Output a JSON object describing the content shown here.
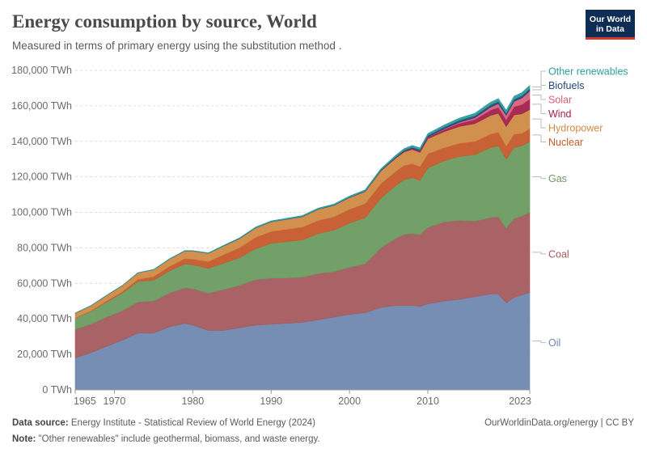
{
  "header": {
    "title": "Energy consumption by source, World",
    "subtitle": "Measured in terms of primary energy using the substitution method .",
    "logo_line1": "Our World",
    "logo_line2": "in Data"
  },
  "footer": {
    "source_label": "Data source:",
    "source_text": "Energy Institute - Statistical Review of World Energy (2024)",
    "note_label": "Note:",
    "note_text": "\"Other renewables\" include geothermal, biomass, and waste energy.",
    "right_text": "OurWorldinData.org/energy | CC BY"
  },
  "chart_data": {
    "type": "area",
    "stacked": true,
    "unit": "TWh",
    "y_tick_format": "{v} TWh",
    "ylim": [
      0,
      180000
    ],
    "y_ticks": [
      0,
      20000,
      40000,
      60000,
      80000,
      100000,
      120000,
      140000,
      160000,
      180000
    ],
    "x_ticks": [
      1965,
      1970,
      1980,
      1990,
      2000,
      2010,
      2023
    ],
    "x": [
      1965,
      1967,
      1969,
      1971,
      1973,
      1975,
      1977,
      1979,
      1980,
      1982,
      1984,
      1986,
      1988,
      1990,
      1992,
      1994,
      1996,
      1998,
      2000,
      2002,
      2004,
      2006,
      2007,
      2008,
      2009,
      2010,
      2012,
      2014,
      2016,
      2018,
      2019,
      2020,
      2021,
      2022,
      2023
    ],
    "series": [
      {
        "name": "Oil",
        "color": "#6f87b0",
        "values": [
          18000,
          21000,
          24500,
          28000,
          32000,
          32000,
          35500,
          37500,
          36500,
          33500,
          33500,
          35000,
          36500,
          37000,
          37500,
          38000,
          39500,
          41000,
          42500,
          43500,
          46500,
          47500,
          47500,
          47500,
          47000,
          48500,
          50000,
          51000,
          52500,
          54000,
          54000,
          49000,
          52000,
          53500,
          55000
        ]
      },
      {
        "name": "Coal",
        "color": "#a45a5e",
        "values": [
          16000,
          16000,
          16500,
          16500,
          17500,
          18000,
          19000,
          20000,
          20500,
          21000,
          23000,
          24000,
          25500,
          26000,
          25500,
          25500,
          26000,
          25500,
          26500,
          27500,
          33500,
          38000,
          40000,
          40500,
          40500,
          43000,
          44500,
          44500,
          42500,
          43000,
          43500,
          42000,
          44500,
          44500,
          45000
        ]
      },
      {
        "name": "Gas",
        "color": "#6b9a60",
        "values": [
          6300,
          7200,
          8500,
          10000,
          11500,
          11800,
          12500,
          13500,
          13500,
          14000,
          15000,
          15500,
          17500,
          19500,
          20500,
          21000,
          22500,
          23500,
          25000,
          26000,
          28000,
          30000,
          31000,
          31500,
          30500,
          33500,
          34500,
          36000,
          37500,
          39500,
          40000,
          39000,
          40000,
          39500,
          40000
        ]
      },
      {
        "name": "Nuclear",
        "color": "#c55a2b",
        "values": [
          200,
          300,
          500,
          800,
          1300,
          2000,
          2500,
          3000,
          3200,
          3800,
          4800,
          5700,
          6400,
          6800,
          7000,
          7200,
          7500,
          7500,
          7700,
          8000,
          8200,
          8000,
          8000,
          7900,
          7800,
          8000,
          7300,
          7400,
          7500,
          7600,
          7700,
          7400,
          7600,
          7000,
          7200
        ]
      },
      {
        "name": "Hydropower",
        "color": "#cf8a44",
        "values": [
          2700,
          2900,
          3200,
          3400,
          3600,
          3900,
          4100,
          4300,
          4500,
          4600,
          4900,
          5100,
          5300,
          5400,
          5600,
          5900,
          6200,
          6400,
          6600,
          6700,
          7100,
          7400,
          7600,
          8000,
          8000,
          8500,
          9000,
          9500,
          10000,
          10500,
          10600,
          11000,
          10800,
          11000,
          10800
        ]
      },
      {
        "name": "Wind",
        "color": "#a3204d",
        "values": [
          0,
          0,
          0,
          0,
          0,
          0,
          0,
          0,
          0,
          0,
          0,
          0,
          0,
          5,
          10,
          20,
          30,
          40,
          80,
          130,
          200,
          320,
          420,
          540,
          670,
          840,
          1260,
          1720,
          2300,
          3030,
          3360,
          3850,
          4630,
          5270,
          5850
        ]
      },
      {
        "name": "Solar",
        "color": "#d7607b",
        "values": [
          0,
          0,
          0,
          0,
          0,
          0,
          0,
          0,
          0,
          0,
          0,
          0,
          0,
          0,
          0,
          1,
          1,
          2,
          3,
          5,
          10,
          20,
          30,
          50,
          80,
          130,
          370,
          630,
          1010,
          1660,
          2060,
          2430,
          2990,
          3610,
          4500
        ]
      },
      {
        "name": "Biofuels",
        "color": "#23487a",
        "values": [
          0,
          0,
          0,
          0,
          0,
          0,
          5,
          20,
          30,
          60,
          80,
          100,
          110,
          120,
          120,
          130,
          140,
          150,
          170,
          200,
          290,
          420,
          540,
          700,
          750,
          850,
          950,
          1050,
          1150,
          1250,
          1300,
          1200,
          1250,
          1350,
          1400
        ]
      },
      {
        "name": "Other renewables",
        "color": "#2c9e9b",
        "values": [
          80,
          90,
          100,
          120,
          150,
          170,
          200,
          230,
          240,
          270,
          300,
          330,
          370,
          400,
          450,
          500,
          550,
          580,
          620,
          700,
          800,
          900,
          950,
          1000,
          1050,
          1100,
          1200,
          1300,
          1400,
          1500,
          1600,
          1650,
          1700,
          1750,
          1800
        ]
      }
    ]
  }
}
